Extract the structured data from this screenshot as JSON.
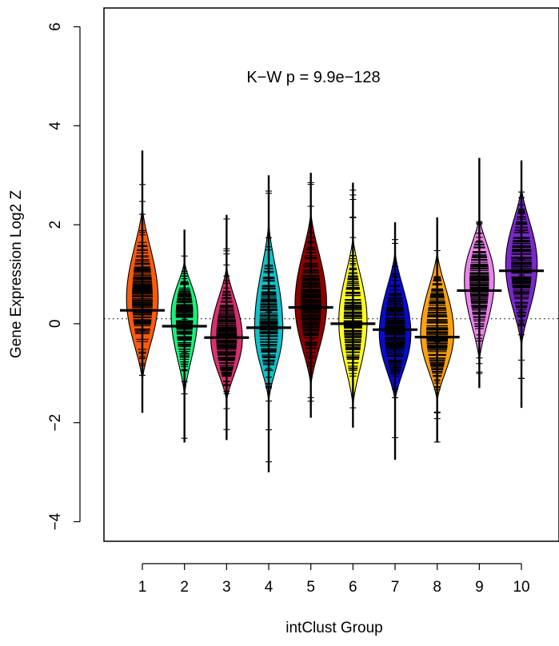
{
  "chart_data": {
    "type": "violin",
    "title": "",
    "xlabel": "intClust Group",
    "ylabel": "Gene Expression Log2 Z",
    "annotation": "K−W   p = 9.9e−128",
    "categories": [
      "1",
      "2",
      "3",
      "4",
      "5",
      "6",
      "7",
      "8",
      "9",
      "10"
    ],
    "ylim": [
      -4.5,
      6.4
    ],
    "y_ticks": [
      -4,
      -2,
      0,
      2,
      4,
      6
    ],
    "y_tick_labels": [
      "−4",
      "−2",
      "0",
      "2",
      "4",
      "6"
    ],
    "reference_line": 0.1,
    "grid": false,
    "legend": "none",
    "groups": [
      {
        "name": "1",
        "color": "#ff5a0a",
        "median": 0.27,
        "whisker_min": -1.8,
        "whisker_max": 3.5,
        "violin_min": -1.2,
        "violin_max": 2.4,
        "violin_peak": 0.5,
        "violin_width": 0.38
      },
      {
        "name": "2",
        "color": "#19f07a",
        "median": -0.05,
        "whisker_min": -2.4,
        "whisker_max": 1.9,
        "violin_min": -1.5,
        "violin_max": 1.3,
        "violin_peak": 0.2,
        "violin_width": 0.32
      },
      {
        "name": "3",
        "color": "#d6306e",
        "median": -0.28,
        "whisker_min": -2.35,
        "whisker_max": 2.2,
        "violin_min": -1.6,
        "violin_max": 1.2,
        "violin_peak": -0.3,
        "violin_width": 0.38
      },
      {
        "name": "4",
        "color": "#10c0c8",
        "median": -0.08,
        "whisker_min": -3.0,
        "whisker_max": 3.0,
        "violin_min": -1.6,
        "violin_max": 2.1,
        "violin_peak": -0.1,
        "violin_width": 0.34
      },
      {
        "name": "5",
        "color": "#8b0000",
        "median": 0.33,
        "whisker_min": -1.9,
        "whisker_max": 3.05,
        "violin_min": -1.3,
        "violin_max": 2.3,
        "violin_peak": 0.4,
        "violin_width": 0.38
      },
      {
        "name": "6",
        "color": "#ffff20",
        "median": 0.0,
        "whisker_min": -2.1,
        "whisker_max": 2.85,
        "violin_min": -1.7,
        "violin_max": 1.8,
        "violin_peak": 0.05,
        "violin_width": 0.34
      },
      {
        "name": "7",
        "color": "#0a0acc",
        "median": -0.12,
        "whisker_min": -2.75,
        "whisker_max": 2.05,
        "violin_min": -1.6,
        "violin_max": 1.5,
        "violin_peak": -0.2,
        "violin_width": 0.38
      },
      {
        "name": "8",
        "color": "#ffa010",
        "median": -0.27,
        "whisker_min": -2.4,
        "whisker_max": 2.15,
        "violin_min": -1.6,
        "violin_max": 1.5,
        "violin_peak": -0.2,
        "violin_width": 0.4
      },
      {
        "name": "9",
        "color": "#ee82ee",
        "median": 0.67,
        "whisker_min": -1.3,
        "whisker_max": 3.35,
        "violin_min": -0.8,
        "violin_max": 2.2,
        "violin_peak": 0.9,
        "violin_width": 0.36
      },
      {
        "name": "10",
        "color": "#7a28c8",
        "median": 1.07,
        "whisker_min": -1.7,
        "whisker_max": 3.3,
        "violin_min": -0.5,
        "violin_max": 2.8,
        "violin_peak": 1.2,
        "violin_width": 0.38
      }
    ]
  }
}
